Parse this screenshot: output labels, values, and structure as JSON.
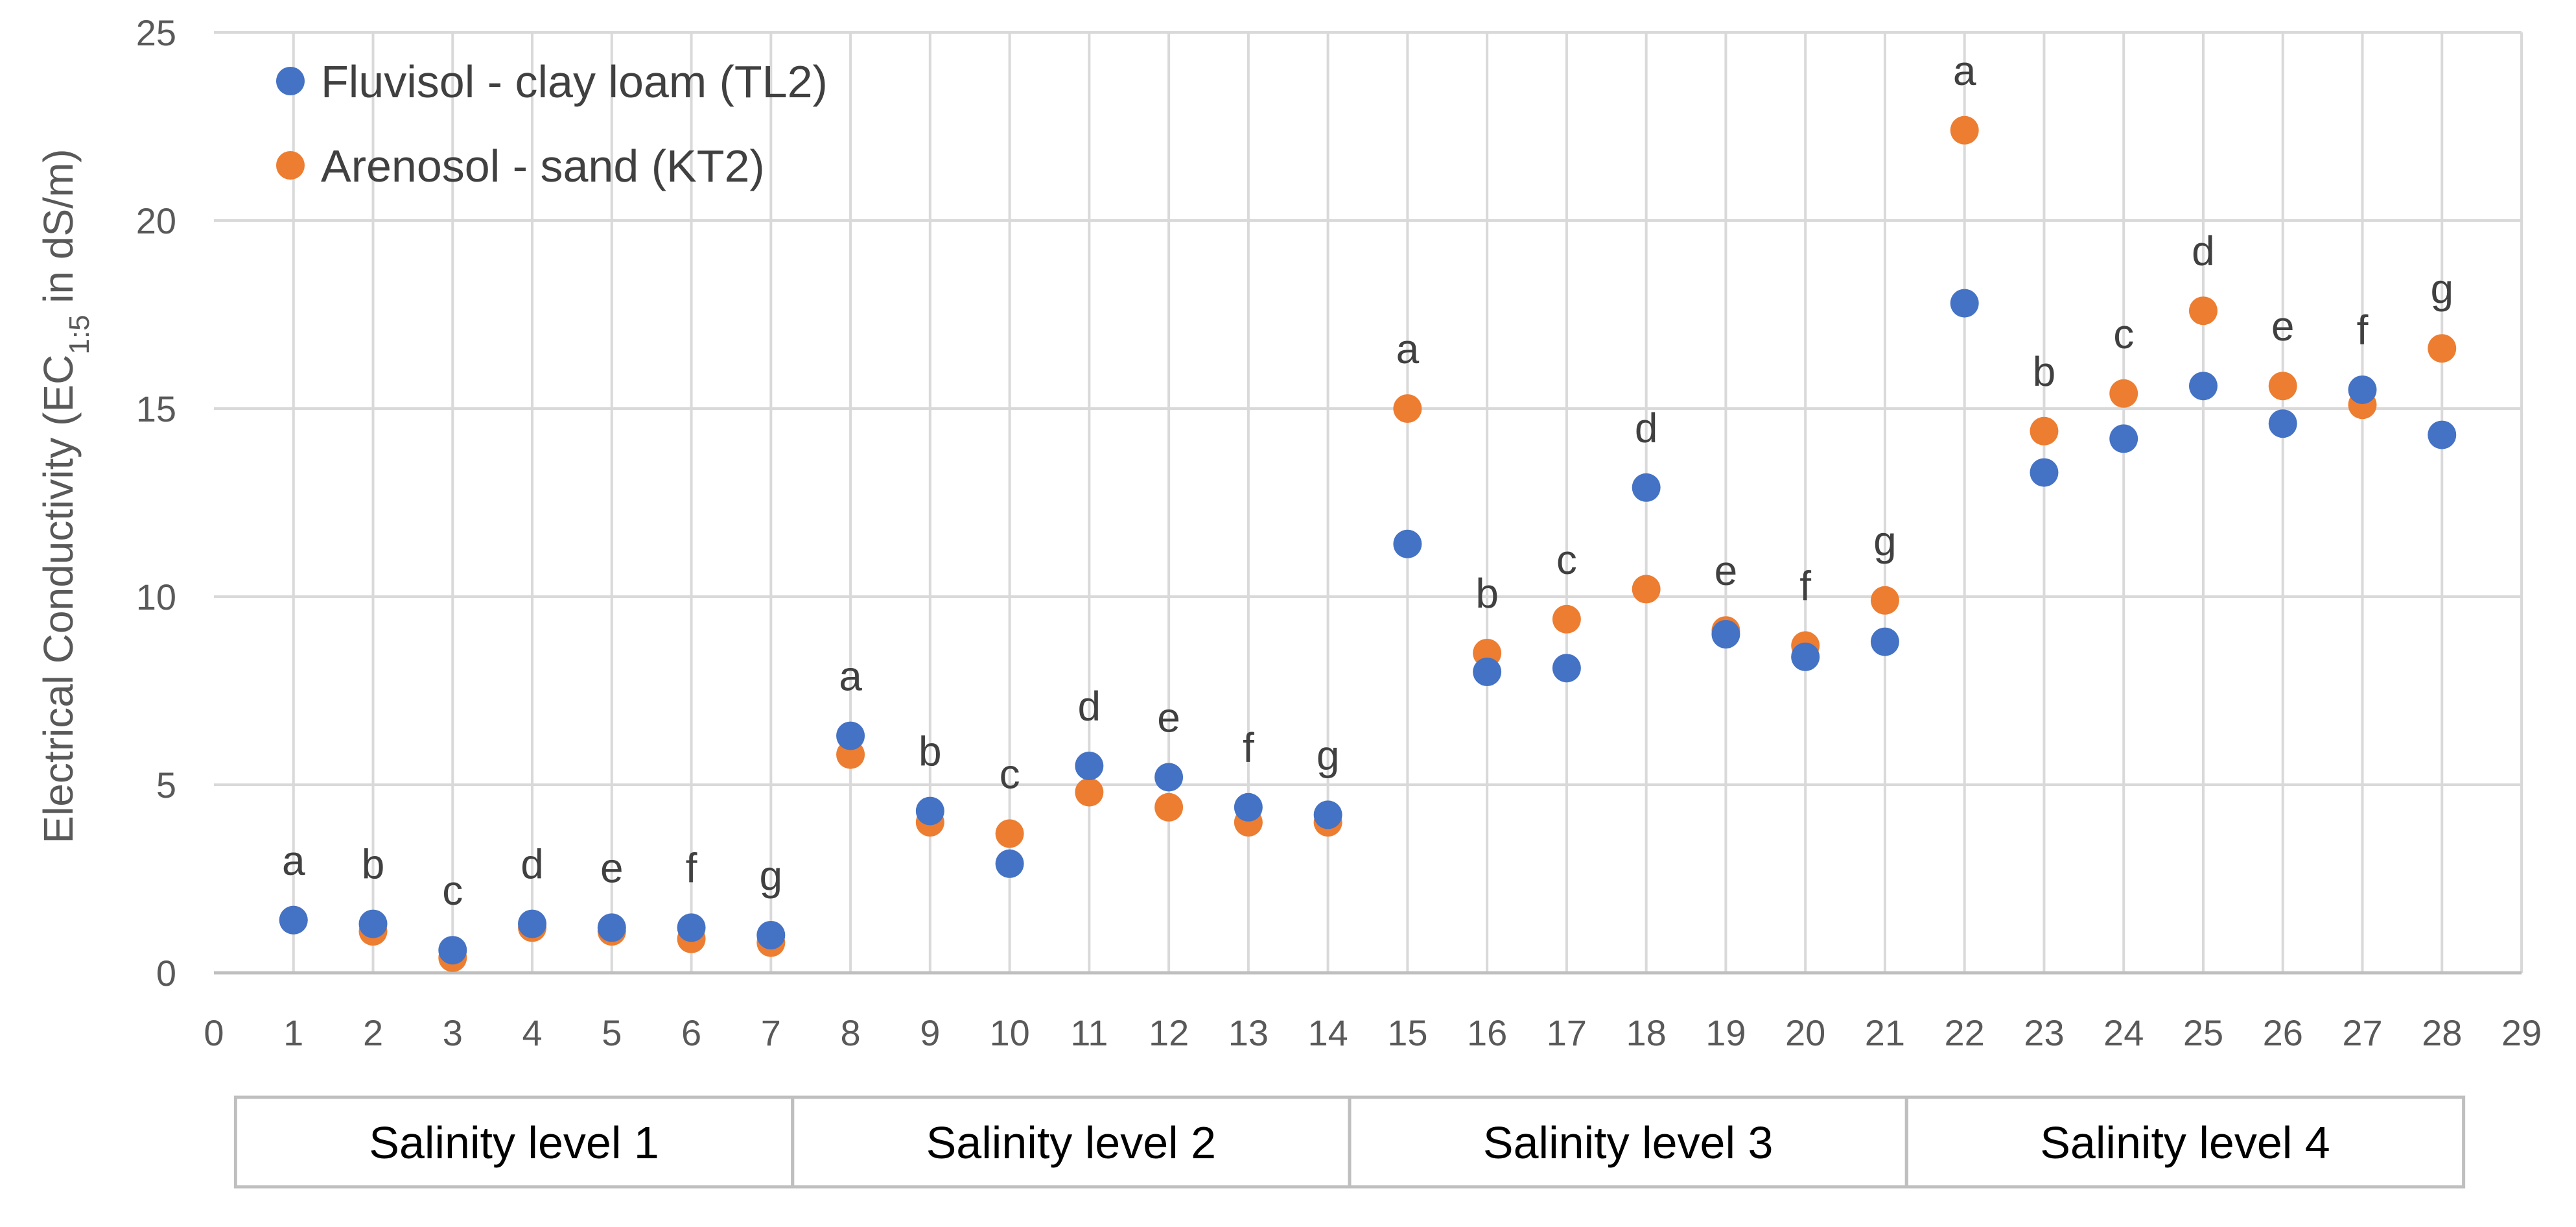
{
  "chart_data": {
    "type": "scatter",
    "title": "",
    "xlabel": "",
    "ylabel_main": "Electrical Conductivity (EC",
    "ylabel_sub": "1:5",
    "ylabel_end": " in dS/m)",
    "xlim": [
      0,
      29
    ],
    "ylim": [
      0,
      25
    ],
    "x_ticks": [
      "0",
      "1",
      "2",
      "3",
      "4",
      "5",
      "6",
      "7",
      "8",
      "9",
      "10",
      "11",
      "12",
      "13",
      "14",
      "15",
      "16",
      "17",
      "18",
      "19",
      "20",
      "21",
      "22",
      "23",
      "24",
      "25",
      "26",
      "27",
      "28",
      "29"
    ],
    "y_ticks": [
      "0",
      "5",
      "10",
      "15",
      "20",
      "25"
    ],
    "grid": true,
    "legend_position": "top-left",
    "colors": {
      "fluvisol": "#4472C4",
      "arenosol": "#ED7D31"
    },
    "series": [
      {
        "name": "Fluvisol - clay loam (TL2)",
        "x": [
          1,
          2,
          3,
          4,
          5,
          6,
          7,
          8,
          9,
          10,
          11,
          12,
          13,
          14,
          15,
          16,
          17,
          18,
          19,
          20,
          21,
          22,
          23,
          24,
          25,
          26,
          27,
          28
        ],
        "values": [
          1.4,
          1.3,
          0.6,
          1.3,
          1.2,
          1.2,
          1.0,
          6.3,
          4.3,
          2.9,
          5.5,
          5.2,
          4.4,
          4.2,
          11.4,
          8.0,
          8.1,
          12.9,
          9.0,
          8.4,
          8.8,
          17.8,
          13.3,
          14.2,
          15.6,
          14.6,
          15.5,
          14.3
        ]
      },
      {
        "name": "Arenosol - sand (KT2)",
        "x": [
          1,
          2,
          3,
          4,
          5,
          6,
          7,
          8,
          9,
          10,
          11,
          12,
          13,
          14,
          15,
          16,
          17,
          18,
          19,
          20,
          21,
          22,
          23,
          24,
          25,
          26,
          27,
          28
        ],
        "values": [
          1.4,
          1.1,
          0.4,
          1.2,
          1.1,
          0.9,
          0.8,
          5.8,
          4.0,
          3.7,
          4.8,
          4.4,
          4.0,
          4.0,
          15.0,
          8.5,
          9.4,
          10.2,
          9.1,
          8.7,
          9.9,
          22.4,
          14.4,
          15.4,
          17.6,
          15.6,
          15.1,
          16.6
        ]
      }
    ],
    "annotations": [
      {
        "x": 1,
        "y": 1.4,
        "text": "a"
      },
      {
        "x": 2,
        "y": 1.3,
        "text": "b"
      },
      {
        "x": 3,
        "y": 0.6,
        "text": "c"
      },
      {
        "x": 4,
        "y": 1.3,
        "text": "d"
      },
      {
        "x": 5,
        "y": 1.2,
        "text": "e"
      },
      {
        "x": 6,
        "y": 1.2,
        "text": "f"
      },
      {
        "x": 7,
        "y": 1.0,
        "text": "g"
      },
      {
        "x": 8,
        "y": 6.3,
        "text": "a"
      },
      {
        "x": 9,
        "y": 4.3,
        "text": "b"
      },
      {
        "x": 10,
        "y": 3.7,
        "text": "c"
      },
      {
        "x": 11,
        "y": 5.5,
        "text": "d"
      },
      {
        "x": 12,
        "y": 5.2,
        "text": "e"
      },
      {
        "x": 13,
        "y": 4.4,
        "text": "f"
      },
      {
        "x": 14,
        "y": 4.2,
        "text": "g"
      },
      {
        "x": 15,
        "y": 15.0,
        "text": "a"
      },
      {
        "x": 16,
        "y": 8.5,
        "text": "b"
      },
      {
        "x": 17,
        "y": 9.4,
        "text": "c"
      },
      {
        "x": 18,
        "y": 12.9,
        "text": "d"
      },
      {
        "x": 19,
        "y": 9.1,
        "text": "e"
      },
      {
        "x": 20,
        "y": 8.7,
        "text": "f"
      },
      {
        "x": 21,
        "y": 9.9,
        "text": "g"
      },
      {
        "x": 22,
        "y": 22.4,
        "text": "a"
      },
      {
        "x": 23,
        "y": 14.4,
        "text": "b"
      },
      {
        "x": 24,
        "y": 15.4,
        "text": "c"
      },
      {
        "x": 25,
        "y": 17.6,
        "text": "d"
      },
      {
        "x": 26,
        "y": 15.6,
        "text": "e"
      },
      {
        "x": 27,
        "y": 15.5,
        "text": "f"
      },
      {
        "x": 28,
        "y": 16.6,
        "text": "g"
      }
    ],
    "groups": [
      {
        "label": "Salinity level 1",
        "x_from": 0.5,
        "x_to": 7.5
      },
      {
        "label": "Salinity level 2",
        "x_from": 7.5,
        "x_to": 14.5
      },
      {
        "label": "Salinity level 3",
        "x_from": 14.5,
        "x_to": 21.5
      },
      {
        "label": "Salinity level 4",
        "x_from": 21.5,
        "x_to": 28.5
      }
    ]
  }
}
